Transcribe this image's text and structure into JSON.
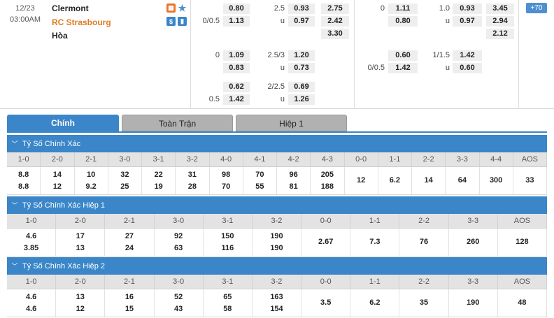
{
  "match": {
    "date": "12/23",
    "time": "03:00AM",
    "home": "Clermont",
    "away": "RC Strasbourg",
    "draw": "Hòa",
    "more_label": "+70",
    "ft": {
      "handicap": [
        {
          "line": "",
          "home": "0.80",
          "away": ""
        },
        {
          "line": "0/0.5",
          "home": "",
          "away": "1.13"
        }
      ],
      "ou_line": "2.5",
      "ou_over": "0.93",
      "ou_under_label": "u",
      "ou_under": "0.97",
      "x12": [
        "2.75",
        "2.42",
        "3.30"
      ],
      "handicap2": {
        "line": "0",
        "home": "1.09",
        "away": "0.83"
      },
      "ou2": {
        "line": "2.5/3",
        "over": "1.20",
        "under_label": "u",
        "under": "0.73"
      },
      "handicap3": {
        "line": "0.5",
        "home": "0.62",
        "away": "1.42"
      },
      "ou3": {
        "line": "2/2.5",
        "over": "0.69",
        "under_label": "u",
        "under": "1.26"
      }
    },
    "ht": {
      "hcp_line": "0",
      "hcp_home": "1.11",
      "hcp_away": "0.80",
      "ou_line": "1.0",
      "ou_over": "0.93",
      "ou_under_label": "u",
      "ou_under": "0.97",
      "x12": [
        "3.45",
        "2.94",
        "2.12"
      ],
      "hcp2_home": "0.60",
      "hcp2_line_away": "0/0.5",
      "hcp2_away": "1.42",
      "ou2_line": "1/1.5",
      "ou2_over": "1.42",
      "ou2_under_label": "u",
      "ou2_under": "0.60"
    }
  },
  "tabs": [
    "Chính",
    "Toàn Trận",
    "Hiệp 1"
  ],
  "sections": [
    {
      "title": "Tỷ Số Chính Xác",
      "columns": [
        "1-0",
        "2-0",
        "2-1",
        "3-0",
        "3-1",
        "3-2",
        "4-0",
        "4-1",
        "4-2",
        "4-3",
        "0-0",
        "1-1",
        "2-2",
        "3-3",
        "4-4",
        "AOS"
      ],
      "values": [
        [
          "8.8",
          "8.8"
        ],
        [
          "14",
          "12"
        ],
        [
          "10",
          "9.2"
        ],
        [
          "32",
          "25"
        ],
        [
          "22",
          "19"
        ],
        [
          "31",
          "28"
        ],
        [
          "98",
          "70"
        ],
        [
          "70",
          "55"
        ],
        [
          "96",
          "81"
        ],
        [
          "205",
          "188"
        ],
        [
          "12"
        ],
        [
          "6.2"
        ],
        [
          "14"
        ],
        [
          "64"
        ],
        [
          "300"
        ],
        [
          "33"
        ]
      ]
    },
    {
      "title": "Tỷ Số Chính Xác Hiệp 1",
      "columns": [
        "1-0",
        "2-0",
        "2-1",
        "3-0",
        "3-1",
        "3-2",
        "0-0",
        "1-1",
        "2-2",
        "3-3",
        "AOS"
      ],
      "values": [
        [
          "4.6",
          "3.85"
        ],
        [
          "17",
          "13"
        ],
        [
          "27",
          "24"
        ],
        [
          "92",
          "63"
        ],
        [
          "150",
          "116"
        ],
        [
          "190",
          "190"
        ],
        [
          "2.67"
        ],
        [
          "7.3"
        ],
        [
          "76"
        ],
        [
          "260"
        ],
        [
          "128"
        ]
      ]
    },
    {
      "title": "Tỷ Số Chính Xác Hiệp 2",
      "columns": [
        "1-0",
        "2-0",
        "2-1",
        "3-0",
        "3-1",
        "3-2",
        "0-0",
        "1-1",
        "2-2",
        "3-3",
        "AOS"
      ],
      "values": [
        [
          "4.6",
          "4.6"
        ],
        [
          "13",
          "12"
        ],
        [
          "16",
          "15"
        ],
        [
          "52",
          "43"
        ],
        [
          "65",
          "58"
        ],
        [
          "163",
          "154"
        ],
        [
          "3.5"
        ],
        [
          "6.2"
        ],
        [
          "35"
        ],
        [
          "190"
        ],
        [
          "48"
        ]
      ]
    }
  ]
}
